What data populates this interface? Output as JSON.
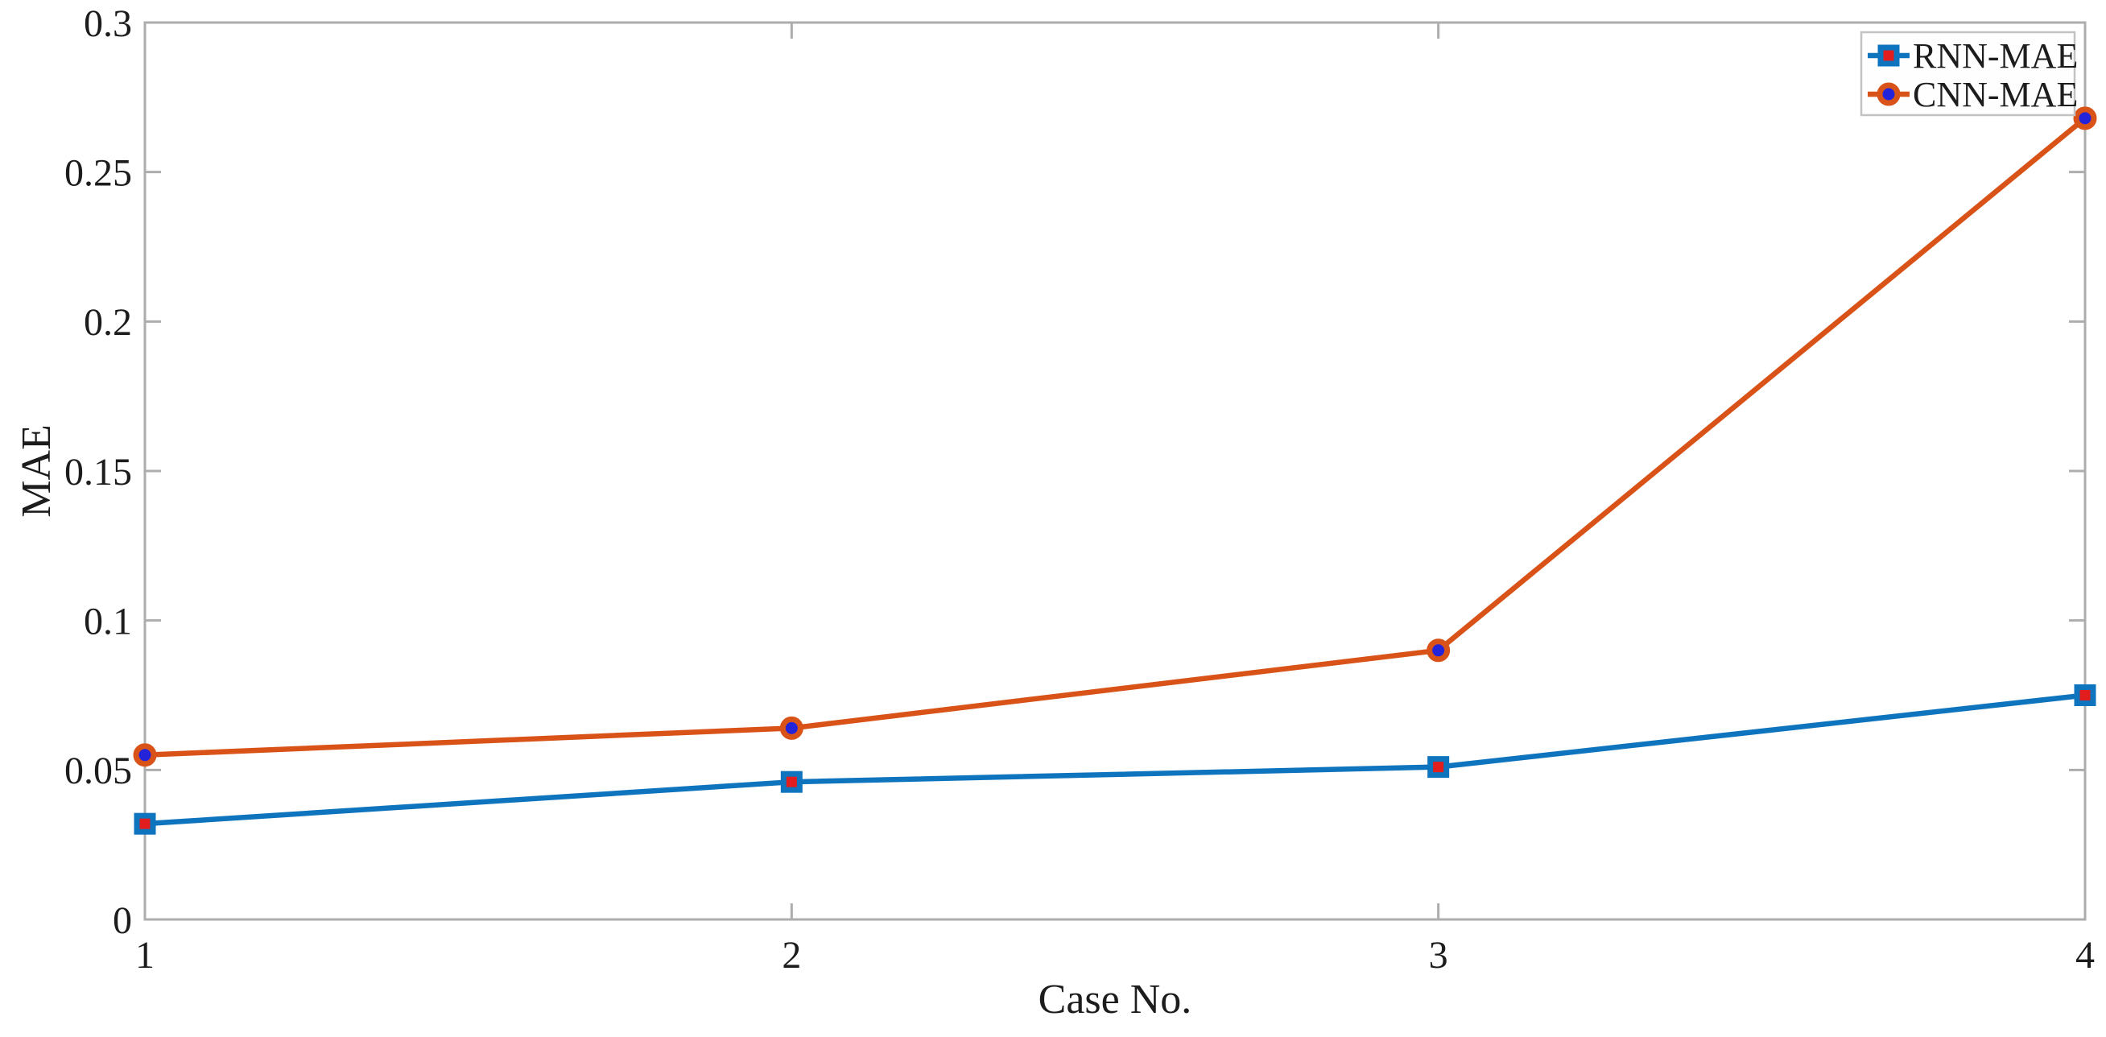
{
  "figure": {
    "background": "#ffffff"
  },
  "chart_data": {
    "type": "line",
    "title": "",
    "xlabel": "Case No.",
    "ylabel": "MAE",
    "x": [
      1,
      2,
      3,
      4
    ],
    "xlim": [
      1,
      4
    ],
    "ylim": [
      0,
      0.3
    ],
    "xticks": [
      1,
      2,
      3,
      4
    ],
    "xtick_labels": [
      "1",
      "2",
      "3",
      "4"
    ],
    "yticks": [
      0,
      0.05,
      0.1,
      0.15,
      0.2,
      0.25,
      0.3
    ],
    "ytick_labels": [
      "0",
      "0.05",
      "0.1",
      "0.15",
      "0.2",
      "0.25",
      "0.3"
    ],
    "grid": false,
    "box": true,
    "tick_direction": "in",
    "legend_position": "top-right",
    "series": [
      {
        "name": "RNN-MAE",
        "values": [
          0.032,
          0.046,
          0.051,
          0.075
        ],
        "color": "#0f74be",
        "marker": "square",
        "marker_face": "#e11d1d",
        "marker_edge": "#0f74be"
      },
      {
        "name": "CNN-MAE",
        "values": [
          0.055,
          0.064,
          0.09,
          0.268
        ],
        "color": "#d95319",
        "marker": "circle",
        "marker_face": "#2323d9",
        "marker_edge": "#d95319"
      }
    ],
    "style": {
      "axis_color": "#adadad",
      "text_color": "#1c1c1c",
      "legend_border_color": "#c2c2c2",
      "legend_background": "#fefefe"
    }
  }
}
